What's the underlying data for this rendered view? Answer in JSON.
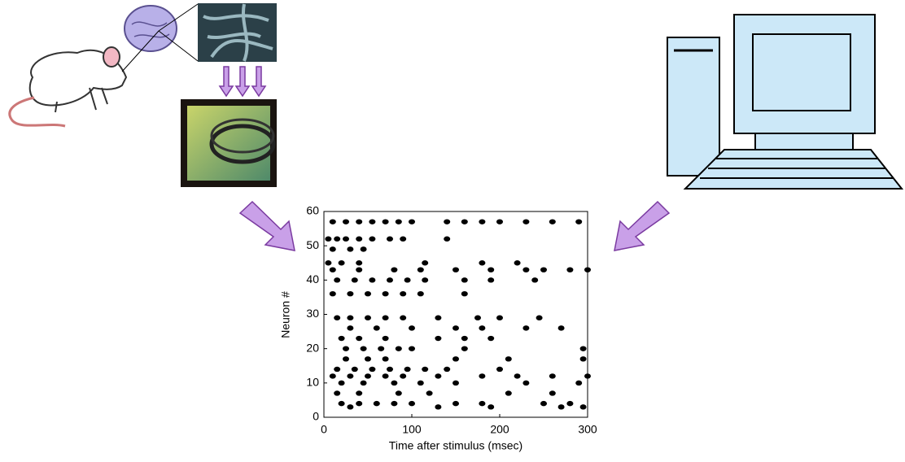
{
  "chart_data": {
    "type": "scatter",
    "x_label": "Time after stimulus (msec)",
    "y_label": "Neuron #",
    "x": [
      10,
      25,
      40,
      55,
      70,
      85,
      100,
      140,
      160,
      180,
      200,
      230,
      260,
      290,
      5,
      15,
      25,
      40,
      55,
      75,
      90,
      140,
      10,
      30,
      45,
      5,
      20,
      40,
      115,
      180,
      220,
      10,
      40,
      80,
      110,
      150,
      190,
      230,
      250,
      280,
      300,
      15,
      35,
      55,
      75,
      95,
      115,
      160,
      190,
      240,
      10,
      30,
      50,
      70,
      90,
      110,
      160,
      15,
      30,
      50,
      70,
      90,
      130,
      175,
      200,
      245,
      30,
      60,
      100,
      150,
      180,
      230,
      270,
      20,
      40,
      70,
      130,
      160,
      190,
      25,
      45,
      65,
      85,
      100,
      160,
      295,
      25,
      50,
      70,
      150,
      210,
      295,
      15,
      35,
      55,
      75,
      95,
      115,
      140,
      200,
      10,
      30,
      50,
      70,
      90,
      130,
      180,
      220,
      260,
      300,
      20,
      45,
      80,
      110,
      150,
      230,
      290,
      15,
      40,
      85,
      120,
      210,
      260,
      20,
      40,
      60,
      80,
      100,
      150,
      180,
      250,
      280,
      30,
      130,
      190,
      270,
      295
    ],
    "values": [
      57,
      57,
      57,
      57,
      57,
      57,
      57,
      57,
      57,
      57,
      57,
      57,
      57,
      57,
      52,
      52,
      52,
      52,
      52,
      52,
      52,
      52,
      49,
      49,
      49,
      45,
      45,
      45,
      45,
      45,
      45,
      43,
      43,
      43,
      43,
      43,
      43,
      43,
      43,
      43,
      43,
      40,
      40,
      40,
      40,
      40,
      40,
      40,
      40,
      40,
      36,
      36,
      36,
      36,
      36,
      36,
      36,
      29,
      29,
      29,
      29,
      29,
      29,
      29,
      29,
      29,
      26,
      26,
      26,
      26,
      26,
      26,
      26,
      23,
      23,
      23,
      23,
      23,
      23,
      20,
      20,
      20,
      20,
      20,
      20,
      20,
      17,
      17,
      17,
      17,
      17,
      17,
      14,
      14,
      14,
      14,
      14,
      14,
      14,
      14,
      12,
      12,
      12,
      12,
      12,
      12,
      12,
      12,
      12,
      12,
      10,
      10,
      10,
      10,
      10,
      10,
      10,
      7,
      7,
      7,
      7,
      7,
      7,
      4,
      4,
      4,
      4,
      4,
      4,
      4,
      4,
      4,
      3,
      3,
      3,
      3,
      3
    ],
    "color": "#000000",
    "xlim": [
      0,
      300
    ],
    "xticks": [
      0,
      100,
      200,
      300
    ],
    "ylim": [
      0,
      60
    ],
    "yticks": [
      0,
      10,
      20,
      30,
      40,
      50,
      60
    ]
  }
}
